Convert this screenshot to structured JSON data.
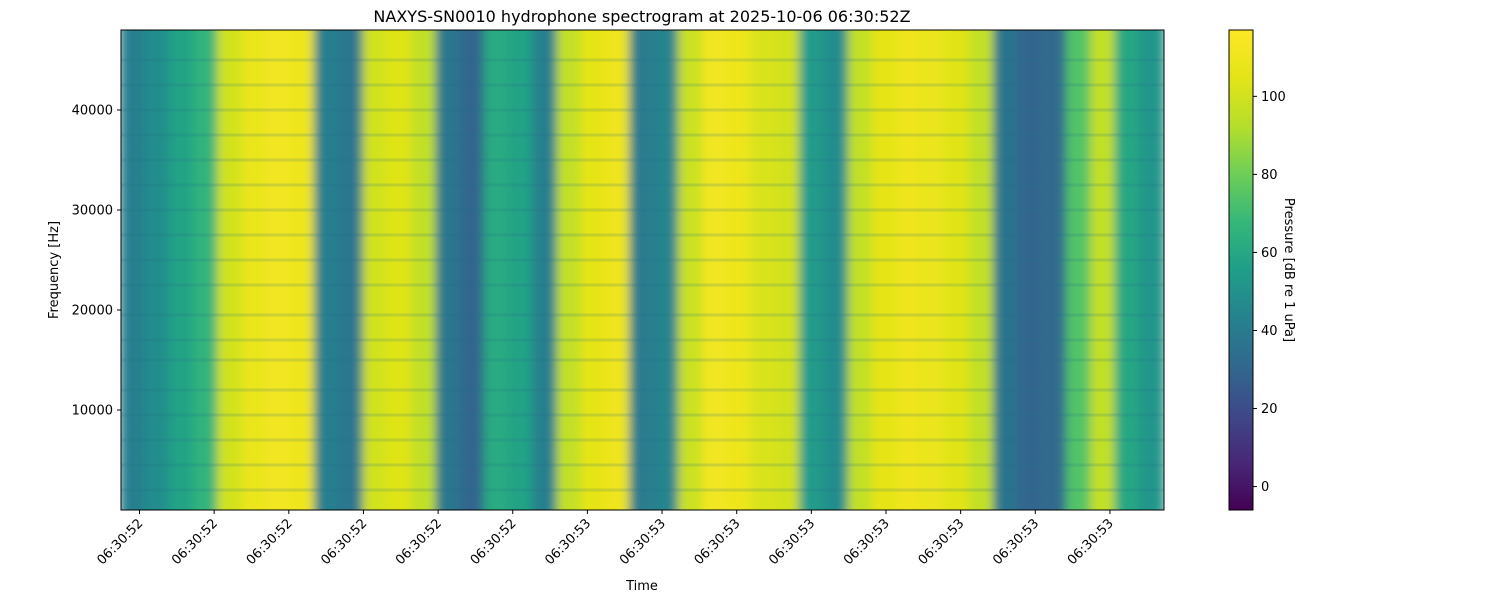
{
  "chart_data": {
    "type": "heatmap",
    "title": "NAXYS-SN0010 hydrophone spectrogram at 2025-10-06 06:30:52Z",
    "xlabel": "Time",
    "ylabel": "Frequency [Hz]",
    "colorbar_label": "Pressure [dB re 1 uPa]",
    "colormap": "viridis",
    "ylim": [
      0,
      48000
    ],
    "clim": [
      -6,
      117
    ],
    "x_tick_labels": [
      "06:30:52",
      "06:30:52",
      "06:30:52",
      "06:30:52",
      "06:30:52",
      "06:30:52",
      "06:30:53",
      "06:30:53",
      "06:30:53",
      "06:30:53",
      "06:30:53",
      "06:30:53",
      "06:30:53",
      "06:30:53"
    ],
    "y_ticks": [
      10000,
      20000,
      30000,
      40000
    ],
    "colorbar_ticks": [
      0,
      20,
      40,
      60,
      80,
      100
    ],
    "column_levels_db": [
      42,
      48,
      58,
      66,
      100,
      108,
      112,
      110,
      42,
      38,
      100,
      104,
      96,
      38,
      30,
      62,
      58,
      42,
      96,
      106,
      110,
      40,
      44,
      98,
      112,
      110,
      102,
      100,
      54,
      48,
      96,
      106,
      110,
      108,
      104,
      96,
      36,
      30,
      32,
      74,
      96,
      60,
      52
    ],
    "band_frequencies_hz": [
      2000,
      4500,
      7000,
      9500,
      12000,
      15000,
      17000,
      19500,
      22500,
      25000,
      27500,
      30000,
      32500,
      35000,
      37500,
      40000,
      42500,
      45000
    ]
  }
}
